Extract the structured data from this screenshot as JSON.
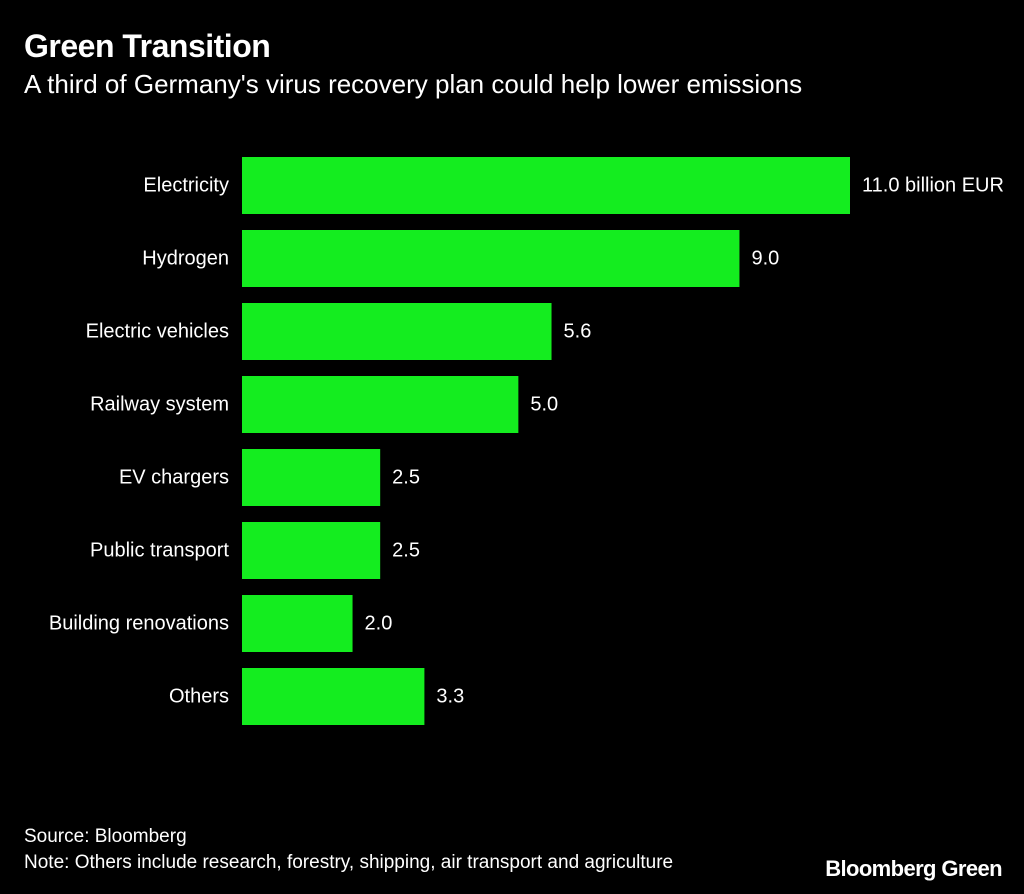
{
  "title": "Green Transition",
  "subtitle": "A third of Germany's virus recovery plan could help lower emissions",
  "chart_data": {
    "type": "bar",
    "orientation": "horizontal",
    "categories": [
      "Electricity",
      "Hydrogen",
      "Electric vehicles",
      "Railway system",
      "EV chargers",
      "Public transport",
      "Building renovations",
      "Others"
    ],
    "values": [
      11.0,
      9.0,
      5.6,
      5.0,
      2.5,
      2.5,
      2.0,
      3.3
    ],
    "value_labels": [
      "11.0 billion EUR",
      "9.0",
      "5.6",
      "5.0",
      "2.5",
      "2.5",
      "2.0",
      "3.3"
    ],
    "unit": "billion EUR",
    "xlim": [
      0,
      11
    ],
    "grid": false,
    "bar_color": "#14ed1f"
  },
  "footer": {
    "source": "Source: Bloomberg",
    "note": "Note: Others include research, forestry, shipping, air transport and agriculture",
    "brand": "Bloomberg Green"
  }
}
